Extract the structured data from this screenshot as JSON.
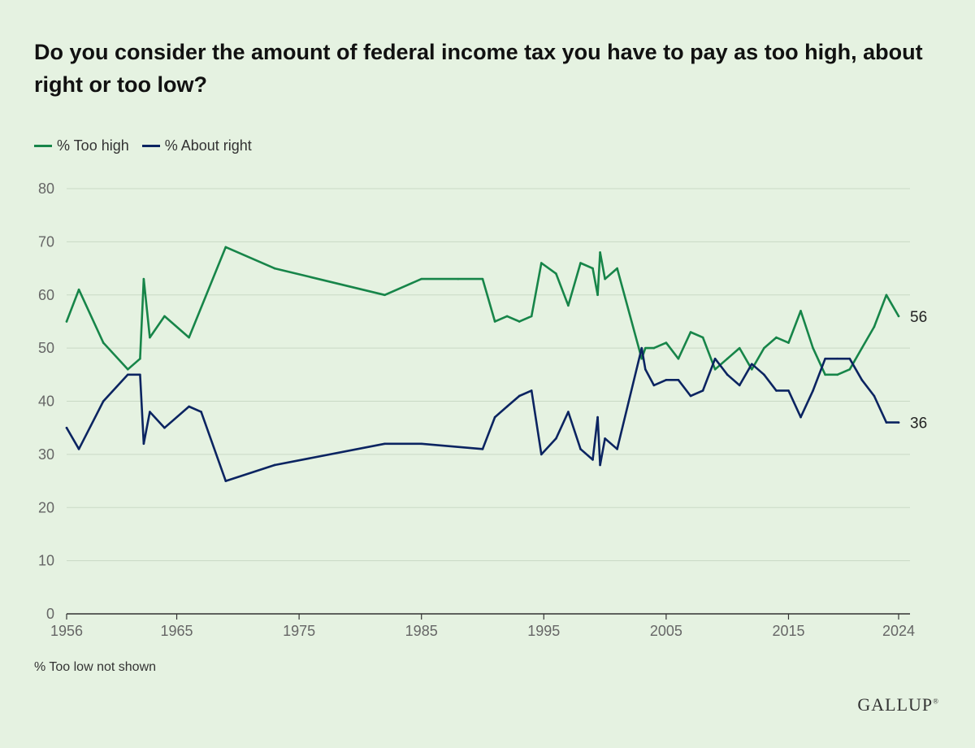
{
  "title": "Do you consider the amount of federal income tax you have to pay as too high, about right or too low?",
  "footnote": "% Too low not shown",
  "brand": "GALLUP",
  "colors": {
    "too_high": "#178549",
    "about_right": "#0b2461",
    "grid": "#c9d9c5",
    "background": "#e5f2e1"
  },
  "chart_data": {
    "type": "line",
    "title": "Do you consider the amount of federal income tax you have to pay as too high, about right or too low?",
    "xlabel": "",
    "ylabel": "",
    "xlim": [
      1956,
      2024
    ],
    "ylim": [
      0,
      80
    ],
    "x_ticks": [
      "1956",
      "1965",
      "1975",
      "1985",
      "1995",
      "2005",
      "2015",
      "2024"
    ],
    "y_ticks": [
      "0",
      "10",
      "20",
      "30",
      "40",
      "50",
      "60",
      "70",
      "80"
    ],
    "grid": true,
    "legend_position": "top-left",
    "series": [
      {
        "name": "% Too high",
        "color": "#178549",
        "end_label": "56",
        "x": [
          1956,
          1957,
          1959,
          1961,
          1962,
          1962.3,
          1962.8,
          1964,
          1966,
          1969,
          1973,
          1982,
          1985,
          1988,
          1990,
          1991,
          1992,
          1993,
          1994,
          1994.8,
          1996,
          1997,
          1998,
          1999,
          1999.4,
          1999.6,
          2000,
          2001,
          2003,
          2003.3,
          2004,
          2005,
          2006,
          2007,
          2008,
          2009,
          2010,
          2011,
          2012,
          2013,
          2014,
          2015,
          2016,
          2017,
          2018,
          2019,
          2020,
          2021,
          2022,
          2023,
          2024
        ],
        "values": [
          55,
          61,
          51,
          46,
          48,
          63,
          52,
          56,
          52,
          69,
          65,
          60,
          63,
          63,
          63,
          55,
          56,
          55,
          56,
          66,
          64,
          58,
          66,
          65,
          60,
          68,
          63,
          65,
          48,
          50,
          50,
          51,
          48,
          53,
          52,
          46,
          48,
          50,
          46,
          50,
          52,
          51,
          57,
          50,
          45,
          45,
          46,
          50,
          54,
          60,
          56
        ]
      },
      {
        "name": "% About right",
        "color": "#0b2461",
        "end_label": "36",
        "x": [
          1956,
          1957,
          1959,
          1961,
          1962,
          1962.3,
          1962.8,
          1964,
          1966,
          1967,
          1969,
          1973,
          1982,
          1985,
          1990,
          1991,
          1992,
          1993,
          1994,
          1994.8,
          1996,
          1997,
          1998,
          1999,
          1999.4,
          1999.6,
          2000,
          2001,
          2003,
          2003.3,
          2004,
          2005,
          2006,
          2007,
          2008,
          2009,
          2010,
          2011,
          2012,
          2013,
          2014,
          2015,
          2016,
          2017,
          2018,
          2019,
          2020,
          2021,
          2022,
          2023,
          2024
        ],
        "values": [
          35,
          31,
          40,
          45,
          45,
          32,
          38,
          35,
          39,
          38,
          25,
          28,
          32,
          32,
          31,
          37,
          39,
          41,
          42,
          30,
          33,
          38,
          31,
          29,
          37,
          28,
          33,
          31,
          50,
          46,
          43,
          44,
          44,
          41,
          42,
          48,
          45,
          43,
          47,
          45,
          42,
          42,
          37,
          42,
          48,
          48,
          48,
          44,
          41,
          36,
          36
        ]
      }
    ]
  }
}
